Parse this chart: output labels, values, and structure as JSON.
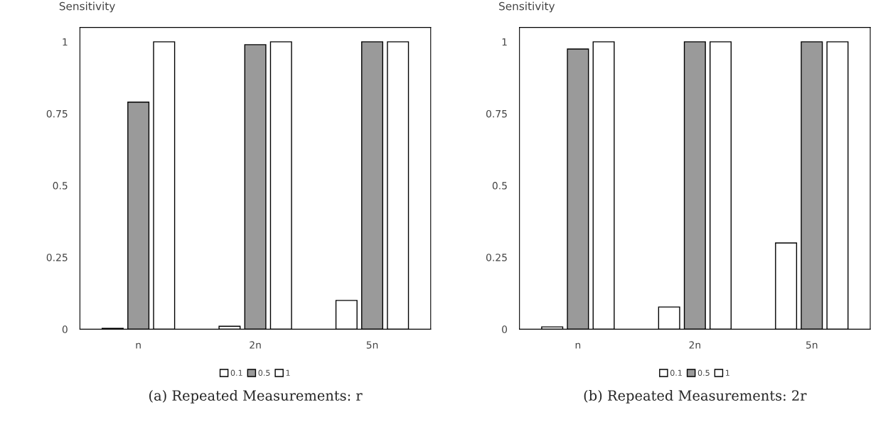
{
  "chart_data": [
    {
      "type": "bar",
      "ylabel": "Sensitivity",
      "categories": [
        "n",
        "2n",
        "5n"
      ],
      "ylim": [
        0,
        1.05
      ],
      "yticks": [
        0,
        0.25,
        0.5,
        0.75,
        1
      ],
      "grid": false,
      "legend": "bottom",
      "series": [
        {
          "name": "0.1",
          "color": "#ffffff",
          "values": [
            0.003,
            0.01,
            0.1
          ]
        },
        {
          "name": "0.5",
          "color": "#9a9a9a",
          "values": [
            0.79,
            0.99,
            1
          ]
        },
        {
          "name": "1",
          "color": "#ffffff",
          "values": [
            1,
            1,
            1
          ]
        }
      ],
      "annotations": [
        "(a) Repeated Measurements: r"
      ]
    },
    {
      "type": "bar",
      "ylabel": "Sensitivity",
      "categories": [
        "n",
        "2n",
        "5n"
      ],
      "ylim": [
        0,
        1.05
      ],
      "yticks": [
        0,
        0.25,
        0.5,
        0.75,
        1
      ],
      "grid": false,
      "legend": "bottom",
      "series": [
        {
          "name": "0.1",
          "color": "#ffffff",
          "values": [
            0.008,
            0.077,
            0.3
          ]
        },
        {
          "name": "0.5",
          "color": "#9a9a9a",
          "values": [
            0.975,
            1,
            1
          ]
        },
        {
          "name": "1",
          "color": "#ffffff",
          "values": [
            1,
            1,
            1
          ]
        }
      ],
      "annotations": [
        "(b) Repeated Measurements: 2r"
      ]
    }
  ]
}
